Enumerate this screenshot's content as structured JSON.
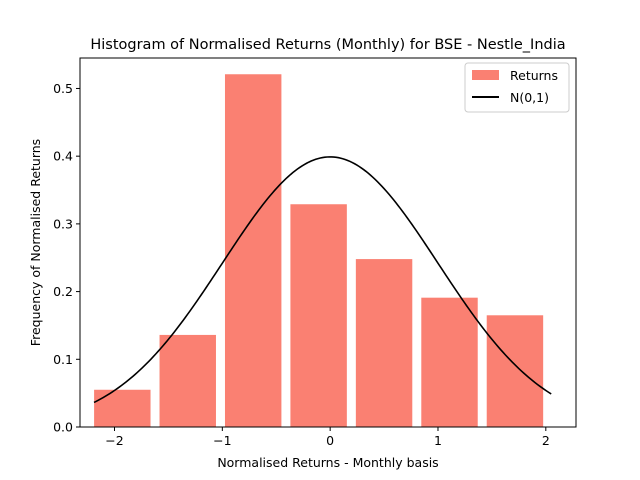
{
  "chart_data": {
    "type": "bar",
    "title": "Histogram of Normalised Returns (Monthly) for BSE - Nestle_India",
    "xlabel": "Normalised Returns - Monthly basis",
    "ylabel": "Frequency of Normalised Returns",
    "xlim": [
      -2.32,
      2.28
    ],
    "ylim": [
      0,
      0.545
    ],
    "xticks": [
      {
        "value": -2,
        "label": "−2"
      },
      {
        "value": -1,
        "label": "−1"
      },
      {
        "value": 0,
        "label": "0"
      },
      {
        "value": 1,
        "label": "1"
      },
      {
        "value": 2,
        "label": "2"
      }
    ],
    "yticks": [
      {
        "value": 0.0,
        "label": "0.0"
      },
      {
        "value": 0.1,
        "label": "0.1"
      },
      {
        "value": 0.2,
        "label": "0.2"
      },
      {
        "value": 0.3,
        "label": "0.3"
      },
      {
        "value": 0.4,
        "label": "0.4"
      },
      {
        "value": 0.5,
        "label": "0.5"
      }
    ],
    "grid": false,
    "legend_position": "top-right",
    "series": [
      {
        "name": "Returns",
        "kind": "histogram",
        "color": "#fa8072",
        "bins": [
          {
            "left": -2.1893,
            "right": -1.6659,
            "value": 0.055
          },
          {
            "left": -1.5824,
            "right": -1.059,
            "value": 0.136
          },
          {
            "left": -0.9755,
            "right": -0.4521,
            "value": 0.521
          },
          {
            "left": -0.3686,
            "right": 0.1548,
            "value": 0.329
          },
          {
            "left": 0.2383,
            "right": 0.7617,
            "value": 0.248
          },
          {
            "left": 0.8452,
            "right": 1.3686,
            "value": 0.191
          },
          {
            "left": 1.4521,
            "right": 1.9755,
            "value": 0.165
          }
        ]
      },
      {
        "name": "N(0,1)",
        "kind": "line",
        "color": "#000000",
        "function": "standard_normal_pdf",
        "x_range": [
          -2.19,
          2.05
        ]
      }
    ]
  }
}
